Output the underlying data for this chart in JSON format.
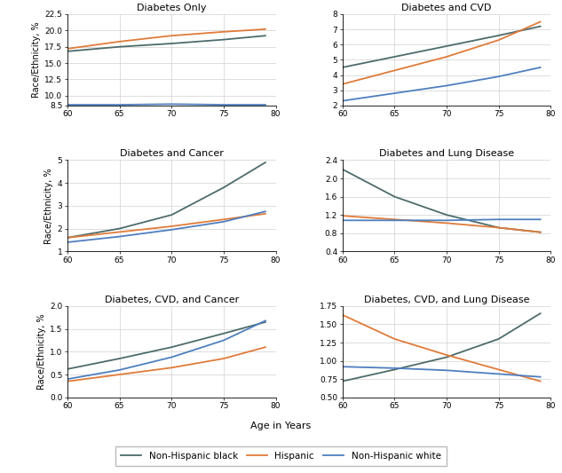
{
  "panels": [
    {
      "title": "Diabetes Only",
      "ylim": [
        8.5,
        22.5
      ],
      "yticks": [
        8.5,
        10.0,
        12.5,
        15.0,
        17.5,
        20.0,
        22.5
      ],
      "series": {
        "black": [
          16.8,
          17.5,
          18.0,
          18.6,
          19.2
        ],
        "hispanic": [
          17.2,
          18.3,
          19.2,
          19.8,
          20.2
        ],
        "white": [
          8.6,
          8.6,
          8.7,
          8.6,
          8.6
        ]
      }
    },
    {
      "title": "Diabetes and CVD",
      "ylim": [
        2.0,
        8.0
      ],
      "yticks": [
        2,
        3,
        4,
        5,
        6,
        7,
        8
      ],
      "series": {
        "black": [
          4.5,
          5.2,
          5.9,
          6.6,
          7.2
        ],
        "hispanic": [
          3.4,
          4.3,
          5.2,
          6.3,
          7.5
        ],
        "white": [
          2.3,
          2.8,
          3.3,
          3.9,
          4.5
        ]
      }
    },
    {
      "title": "Diabetes and Cancer",
      "ylim": [
        1.0,
        5.0
      ],
      "yticks": [
        1,
        2,
        3,
        4,
        5
      ],
      "series": {
        "black": [
          1.6,
          2.0,
          2.6,
          3.8,
          4.9
        ],
        "hispanic": [
          1.6,
          1.85,
          2.1,
          2.4,
          2.65
        ],
        "white": [
          1.4,
          1.65,
          1.95,
          2.3,
          2.75
        ]
      }
    },
    {
      "title": "Diabetes and Lung Disease",
      "ylim": [
        0.4,
        2.4
      ],
      "yticks": [
        0.4,
        0.8,
        1.2,
        1.6,
        2.0,
        2.4
      ],
      "series": {
        "black": [
          2.2,
          1.6,
          1.2,
          0.92,
          0.82
        ],
        "hispanic": [
          1.18,
          1.1,
          1.02,
          0.92,
          0.82
        ],
        "white": [
          1.08,
          1.08,
          1.08,
          1.1,
          1.1
        ]
      }
    },
    {
      "title": "Diabetes, CVD, and Cancer",
      "ylim": [
        0.0,
        2.0
      ],
      "yticks": [
        0.0,
        0.5,
        1.0,
        1.5,
        2.0
      ],
      "series": {
        "black": [
          0.62,
          0.85,
          1.1,
          1.4,
          1.65
        ],
        "hispanic": [
          0.35,
          0.5,
          0.65,
          0.85,
          1.1
        ],
        "white": [
          0.4,
          0.6,
          0.88,
          1.25,
          1.68
        ]
      }
    },
    {
      "title": "Diabetes, CVD, and Lung Disease",
      "ylim": [
        0.5,
        1.75
      ],
      "yticks": [
        0.5,
        0.75,
        1.0,
        1.25,
        1.5,
        1.75
      ],
      "series": {
        "black": [
          0.72,
          0.88,
          1.05,
          1.3,
          1.65
        ],
        "hispanic": [
          1.63,
          1.3,
          1.08,
          0.88,
          0.72
        ],
        "white": [
          0.92,
          0.9,
          0.87,
          0.82,
          0.78
        ]
      }
    }
  ],
  "ages": [
    60,
    65,
    70,
    75,
    79
  ],
  "colors": {
    "black": "#4d6b6b",
    "hispanic": "#e07b39",
    "white": "#4e7fbf"
  },
  "legend_labels": {
    "black": "Non-Hispanic black",
    "hispanic": "Hispanic",
    "white": "Non-Hispanic white"
  },
  "xlabel": "Age in Years",
  "ylabel": "Race/Ethnicity, %",
  "grid_color": "#d0d0d0"
}
